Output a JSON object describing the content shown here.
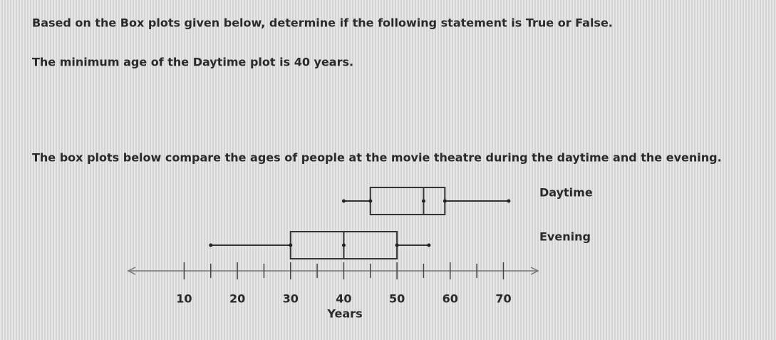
{
  "question": {
    "instruction": "Based on the Box plots given below, determine if the following statement is True or False.",
    "statement": "The minimum age of the Daytime plot is 40 years."
  },
  "chart_data": {
    "type": "box",
    "title": "The box plots below compare the ages of people at the movie theatre during the daytime and the evening.",
    "xlabel": "Years",
    "series": [
      {
        "name": "Daytime",
        "min": 40,
        "q1": 45,
        "median": 55,
        "q3": 59,
        "max": 71
      },
      {
        "name": "Evening",
        "min": 15,
        "q1": 30,
        "median": 40,
        "q3": 50,
        "max": 56
      }
    ],
    "xlim": [
      -0.5,
      76.5
    ],
    "xticks": [
      10,
      20,
      30,
      40,
      50,
      60,
      70
    ],
    "minor_xticks": [
      15,
      25,
      35,
      45,
      55,
      65
    ]
  }
}
